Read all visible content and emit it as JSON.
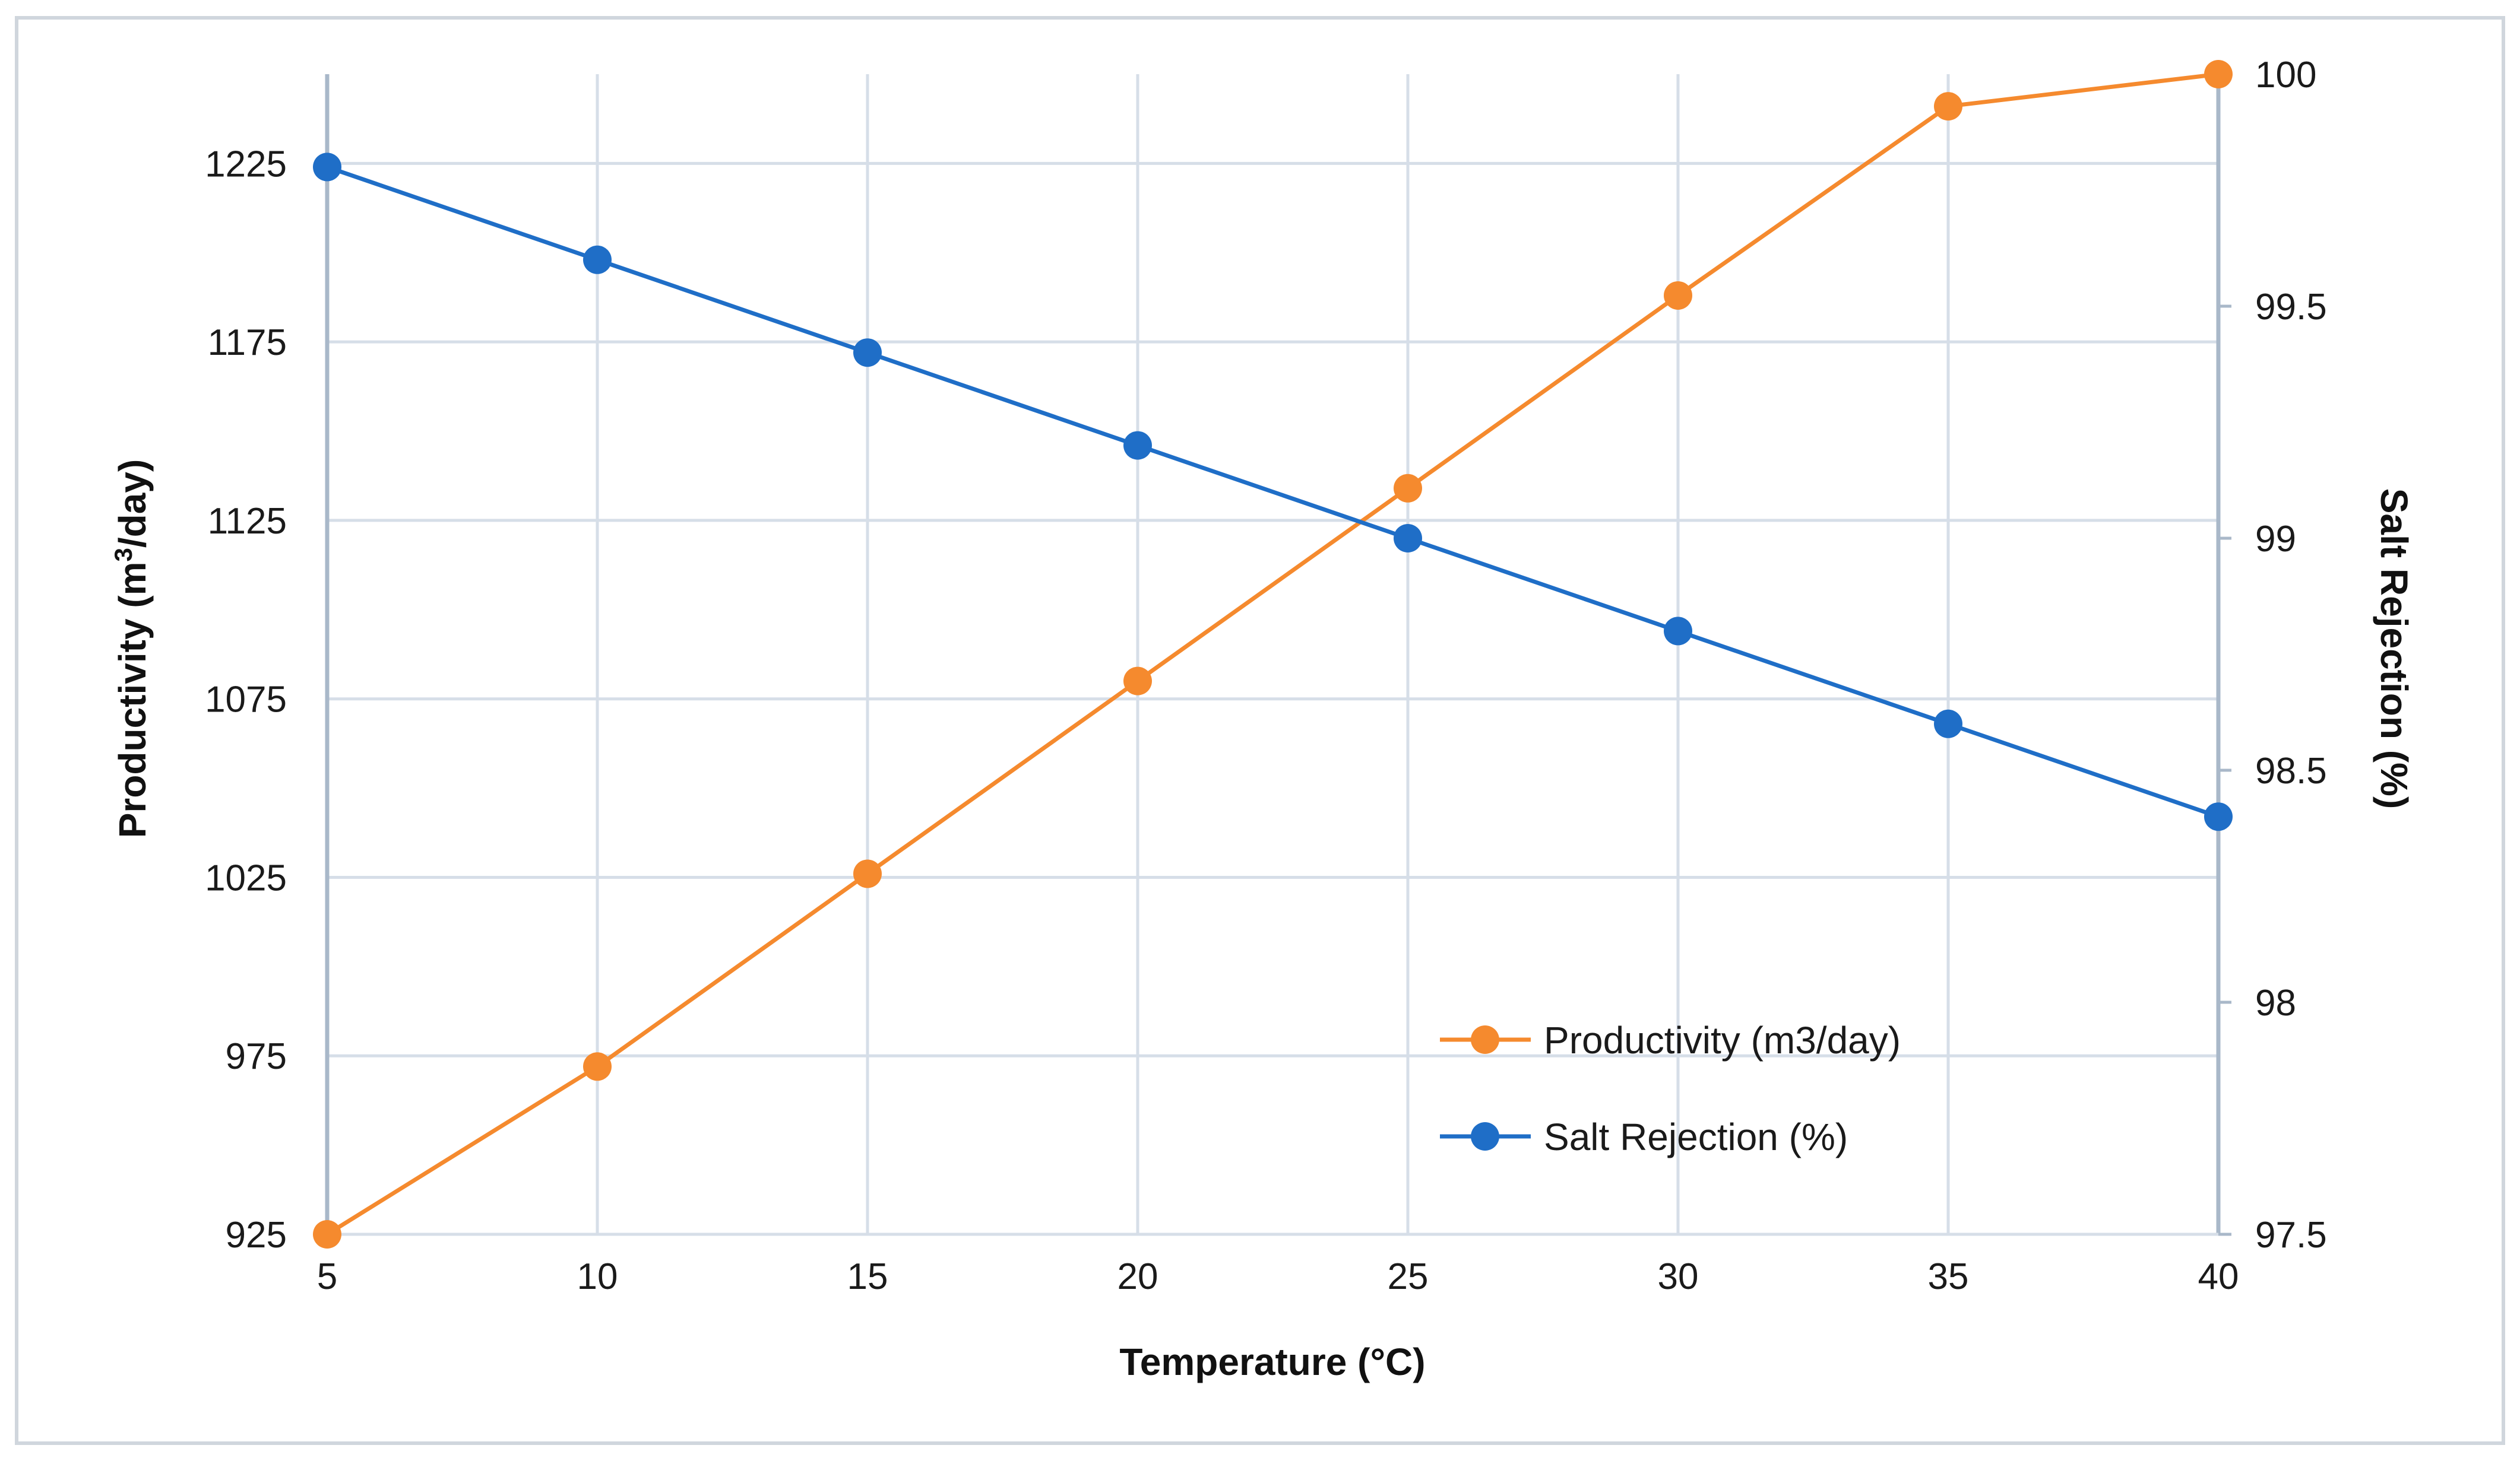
{
  "chart_data": {
    "type": "line",
    "title": "",
    "xlabel": "Temperature (°C)",
    "ylabel_left": {
      "main": "Productivity (m",
      "sup": "3",
      "rest": "/day)"
    },
    "ylabel_right": "Salt Rejection (%)",
    "x": [
      5,
      10,
      15,
      20,
      25,
      30,
      35,
      40
    ],
    "x_tick_labels": [
      "5",
      "10",
      "15",
      "20",
      "25",
      "30",
      "35",
      "40"
    ],
    "xlim": [
      5,
      40
    ],
    "ylim_left": [
      925,
      1250
    ],
    "y_ticks_left": [
      925,
      975,
      1025,
      1075,
      1125,
      1175,
      1225
    ],
    "y_tick_labels_left": [
      "925",
      "975",
      "1025",
      "1075",
      "1125",
      "1175",
      "1225"
    ],
    "ylim_right": [
      97.5,
      100
    ],
    "y_ticks_right": [
      97.5,
      98,
      98.5,
      99,
      99.5,
      100
    ],
    "y_tick_labels_right": [
      "97.5",
      "98",
      "98.5",
      "99",
      "99.5",
      "100"
    ],
    "grid": true,
    "legend_position": "lower-right",
    "series": [
      {
        "name": "Productivity (m3/day)",
        "axis": "left",
        "color": "#F58A2E",
        "values": [
          925,
          972,
          1026,
          1080,
          1134,
          1188,
          1241,
          1250
        ]
      },
      {
        "name": "Salt Rejection (%)",
        "axis": "right",
        "color": "#1F6EC7",
        "values": [
          99.8,
          99.6,
          99.4,
          99.2,
          99.0,
          98.8,
          98.6,
          98.4
        ]
      }
    ],
    "colors": {
      "grid": "#D6DEE8",
      "axis": "#A9B8C9",
      "frame": "#D0D6DD"
    }
  }
}
